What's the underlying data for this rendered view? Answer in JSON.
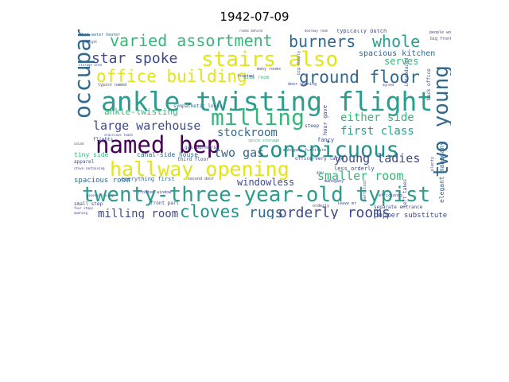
{
  "title": "1942-07-09",
  "words": [
    {
      "text": "ankle-twisting flight",
      "color": "#2a9d8f"
    },
    {
      "text": "twenty-three-year-old typist",
      "color": "#2a9d8f"
    },
    {
      "text": "hallway opening",
      "color": "#e3e418"
    },
    {
      "text": "conspicuous",
      "color": "#21918c"
    },
    {
      "text": "named bep",
      "color": "#440154"
    },
    {
      "text": "stairs also",
      "color": "#e3e418"
    },
    {
      "text": "milling",
      "color": "#35b779"
    },
    {
      "text": "occupant",
      "color": "#31688e"
    },
    {
      "text": "two young",
      "color": "#31688e"
    },
    {
      "text": "varied assortment",
      "color": "#35b779"
    },
    {
      "text": "office building",
      "color": "#e3e418"
    },
    {
      "text": "burners",
      "color": "#31688e"
    },
    {
      "text": "whole",
      "color": "#2a9d8f"
    },
    {
      "text": "ground floor",
      "color": "#31688e"
    },
    {
      "text": "star spoke",
      "color": "#3e4a89"
    },
    {
      "text": "large warehouse",
      "color": "#3e4a89"
    },
    {
      "text": "cloves",
      "color": "#21918c"
    },
    {
      "text": "rugs",
      "color": "#31688e"
    },
    {
      "text": "orderly rooms",
      "color": "#3e4a89"
    },
    {
      "text": "young ladies",
      "color": "#3e4a89"
    },
    {
      "text": "smaller room",
      "color": "#35b779"
    },
    {
      "text": "either side",
      "color": "#35b779"
    },
    {
      "text": "first class",
      "color": "#2a9d8f"
    },
    {
      "text": "stockroom",
      "color": "#31688e"
    },
    {
      "text": "two gas",
      "color": "#31688e"
    },
    {
      "text": "milling room",
      "color": "#3e4a89"
    },
    {
      "text": "ankle-twisting",
      "color": "#35b779"
    },
    {
      "text": "spacious kitchen",
      "color": "#31688e"
    },
    {
      "text": "serves",
      "color": "#35b779"
    },
    {
      "text": "windowless",
      "color": "#3e4a89"
    },
    {
      "text": "pepper substitute",
      "color": "#3e4a89"
    },
    {
      "text": "hot-water heater",
      "color": "#31688e"
    },
    {
      "text": "typically dutch",
      "color": "#3e4a89"
    },
    {
      "text": "sympathetic looks",
      "color": "#31688e"
    },
    {
      "text": "canal-side house",
      "color": "#31688e"
    },
    {
      "text": "spacious room",
      "color": "#31688e"
    },
    {
      "text": "everything first",
      "color": "#31688e"
    },
    {
      "text": "tiny side",
      "color": "#35b779"
    },
    {
      "text": "third floor",
      "color": "#3e4a89"
    },
    {
      "text": "front part",
      "color": "#3e4a89"
    },
    {
      "text": "small step",
      "color": "#3e4a89"
    },
    {
      "text": "gas burners",
      "color": "#3e4a89"
    },
    {
      "text": "spice storage",
      "color": "#35b779"
    },
    {
      "text": "mahogany furniture",
      "color": "#31688e"
    },
    {
      "text": "office-very large",
      "color": "#3e4a89"
    },
    {
      "text": "second door",
      "color": "#3e4a89"
    },
    {
      "text": "less orderly",
      "color": "#3e4a89"
    },
    {
      "text": "elegant mahogany",
      "color": "#31688e"
    },
    {
      "text": "separate entrance",
      "color": "#3e4a89"
    },
    {
      "text": "fancy",
      "color": "#3e4a89"
    },
    {
      "text": "apparel",
      "color": "#3e4a89"
    },
    {
      "text": "stove containing",
      "color": "#3e4a89"
    },
    {
      "text": "big supply",
      "color": "#3e4a89"
    },
    {
      "text": "typist named",
      "color": "#3e4a89"
    },
    {
      "text": "door opening",
      "color": "#3e4a89"
    },
    {
      "text": "many rooms",
      "color": "#3e4a89"
    },
    {
      "text": "side room",
      "color": "#35b779"
    },
    {
      "text": "hour gave",
      "color": "#3e4a89"
    },
    {
      "text": "back office",
      "color": "#3e4a89"
    },
    {
      "text": "introduced",
      "color": "#3e4a89"
    },
    {
      "text": "steep",
      "color": "#3e4a89"
    },
    {
      "text": "big front",
      "color": "#3e4a89"
    },
    {
      "text": "people working",
      "color": "#3e4a89"
    },
    {
      "text": "storage area",
      "color": "#3e4a89"
    },
    {
      "text": "mahogany",
      "color": "#3e4a89"
    },
    {
      "text": "left takes",
      "color": "#3e4a89"
    },
    {
      "text": "four steps",
      "color": "#3e4a89"
    },
    {
      "text": "general living",
      "color": "#3e4a89"
    },
    {
      "text": "frosted window",
      "color": "#3e4a89"
    },
    {
      "text": "flights",
      "color": "#3e4a89"
    },
    {
      "text": "staircase leads",
      "color": "#3e4a89"
    },
    {
      "text": "leave mr",
      "color": "#3e4a89"
    },
    {
      "text": "efficiency",
      "color": "#3e4a89"
    },
    {
      "text": "opening",
      "color": "#3e4a89"
    },
    {
      "text": "goes",
      "color": "#3e4a89"
    },
    {
      "text": "agreed",
      "color": "#3e4a89"
    },
    {
      "text": "partition",
      "color": "#3e4a89"
    },
    {
      "text": "plenty",
      "color": "#3e4a89"
    },
    {
      "text": "salad",
      "color": "#3e4a89"
    },
    {
      "text": "orderly",
      "color": "#3e4a89"
    },
    {
      "text": "straight",
      "color": "#3e4a89"
    },
    {
      "text": "frosted",
      "color": "#3e4a89"
    },
    {
      "text": "rooms behind",
      "color": "#3e4a89"
    },
    {
      "text": "doorway room",
      "color": "#3e4a89"
    }
  ]
}
